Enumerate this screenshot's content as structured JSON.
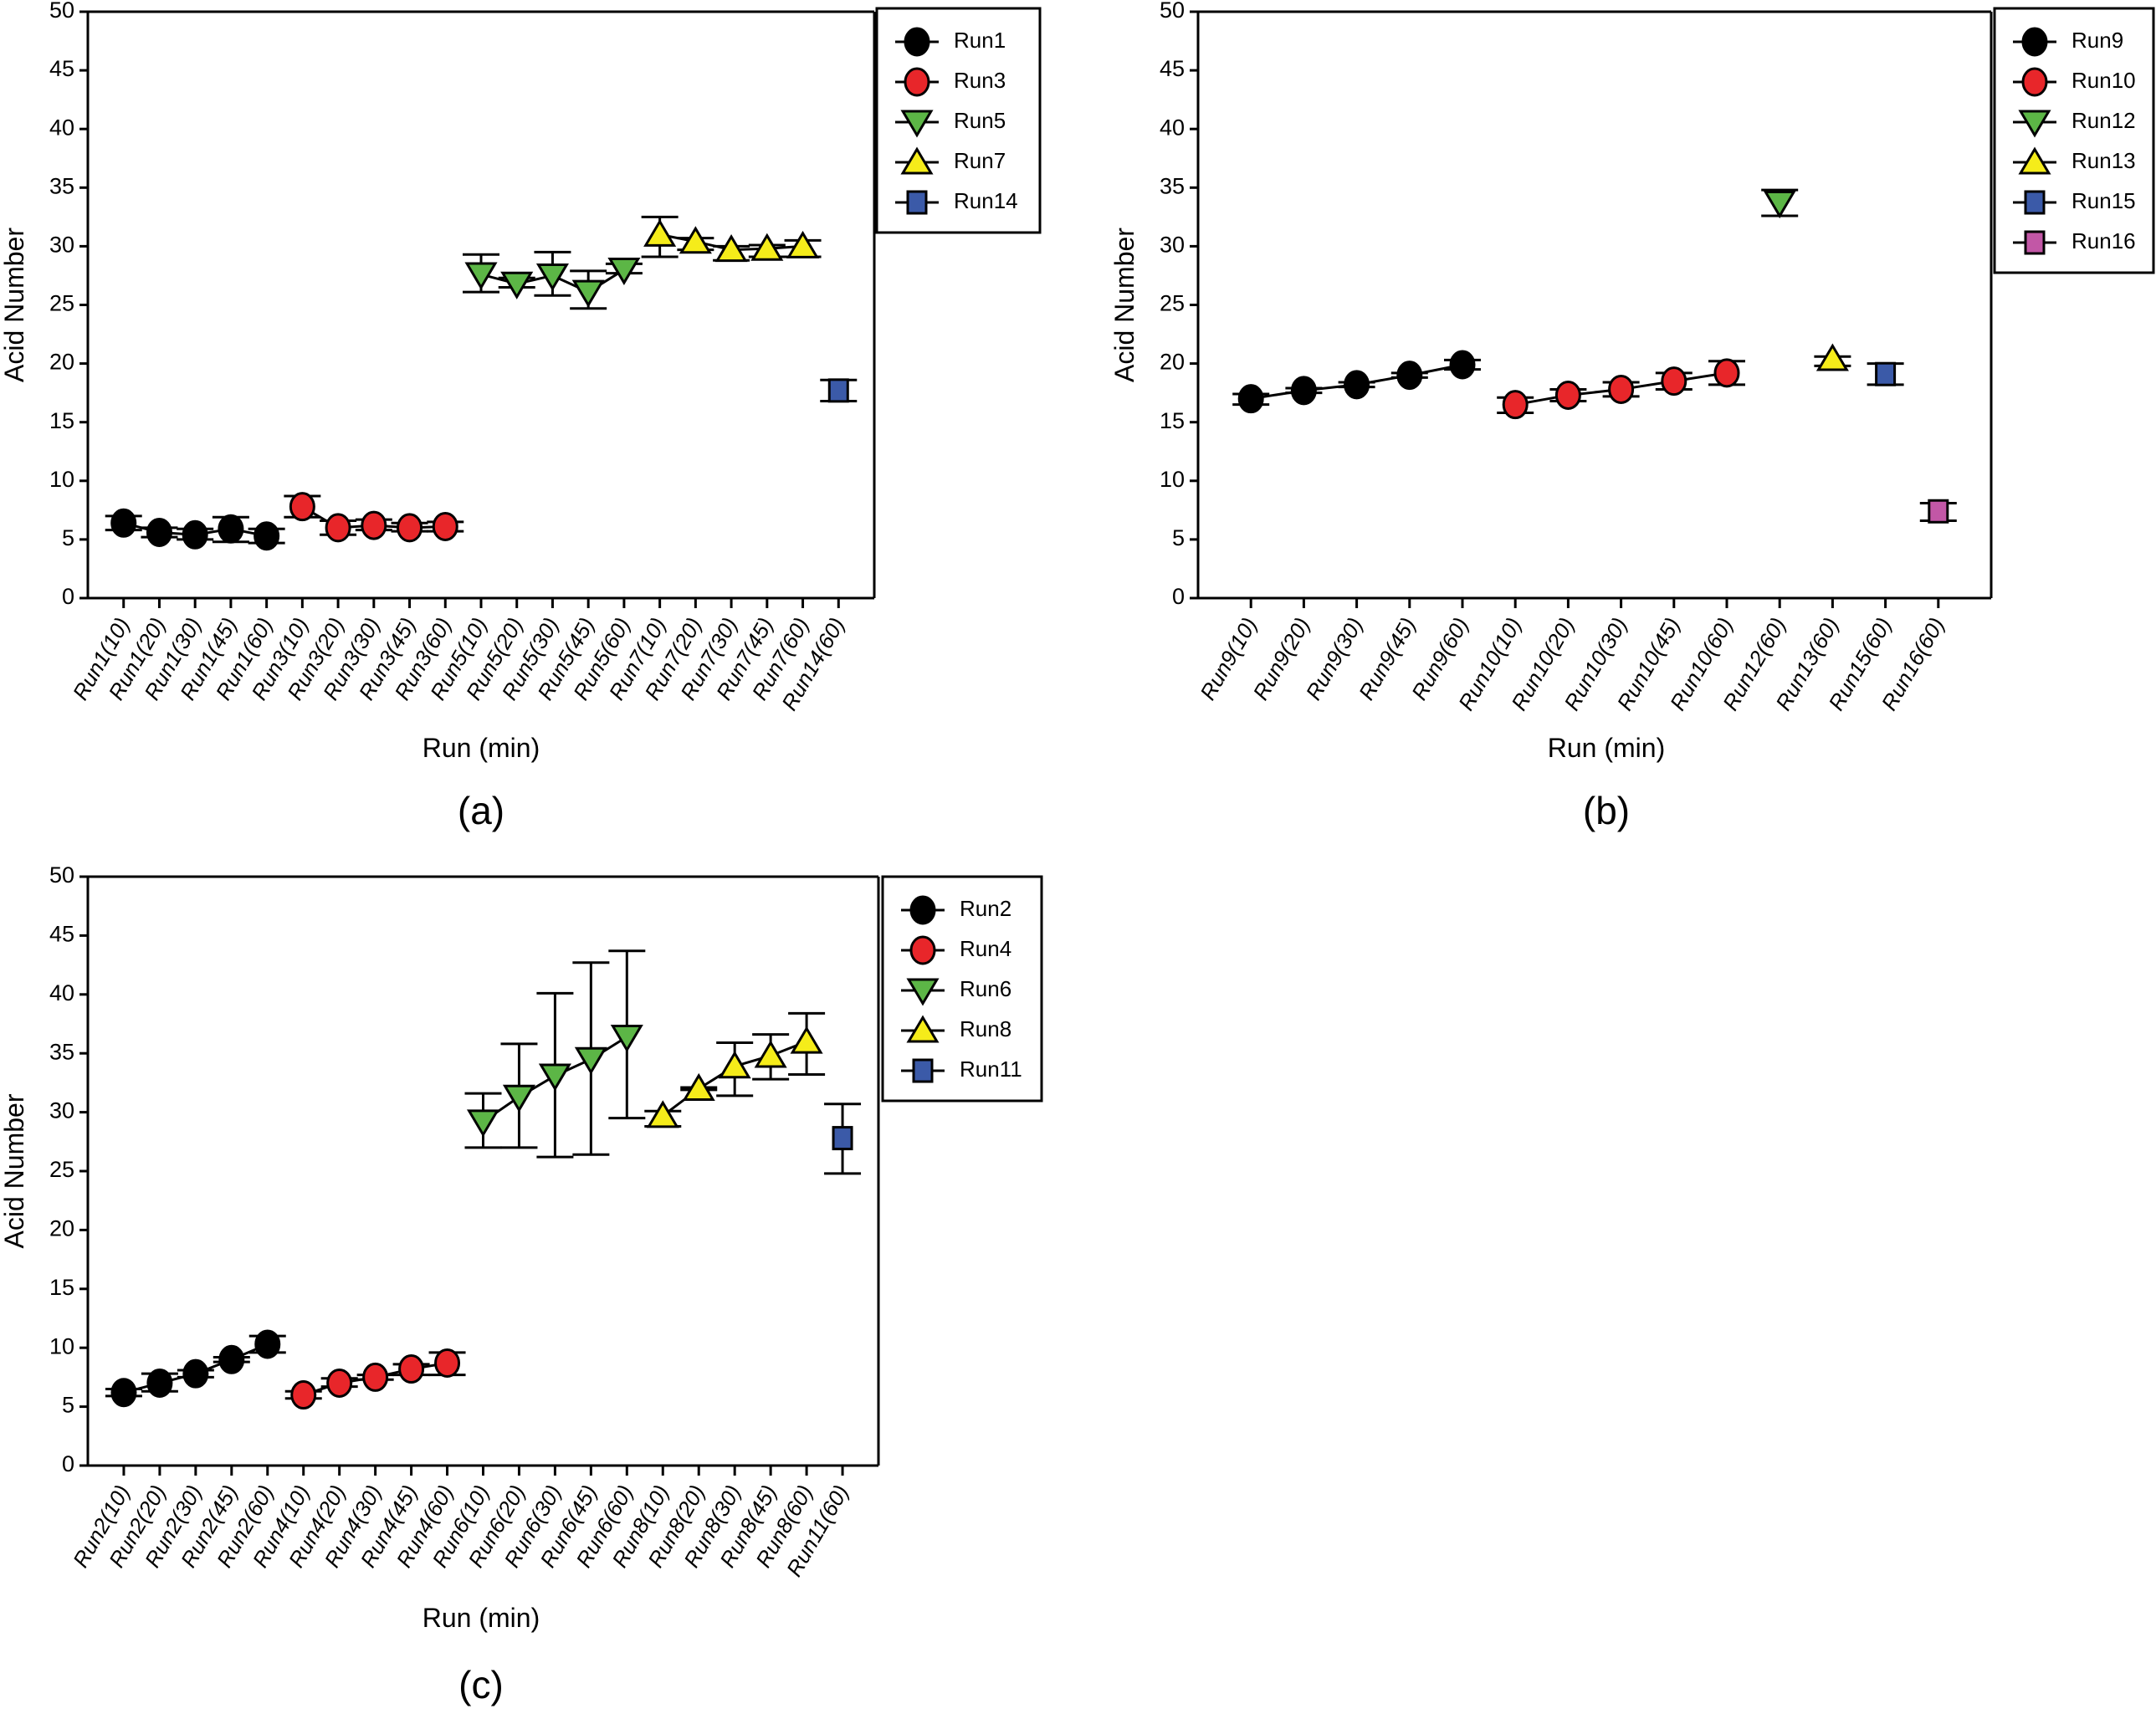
{
  "chart_data": [
    {
      "panel": "(a)",
      "type": "scatter",
      "title": "",
      "xlabel": "Run (min)",
      "ylabel": "Acid Number",
      "ylim": [
        0,
        50
      ],
      "yticks": [
        0,
        5,
        10,
        15,
        20,
        25,
        30,
        35,
        40,
        45,
        50
      ],
      "grid": false,
      "legend_position": "top-right-outside",
      "categories": [
        "Run1(10)",
        "Run1(20)",
        "Run1(30)",
        "Run1(45)",
        "Run1(60)",
        "Run3(10)",
        "Run3(20)",
        "Run3(30)",
        "Run3(45)",
        "Run3(60)",
        "Run5(10)",
        "Run5(20)",
        "Run5(30)",
        "Run5(45)",
        "Run5(60)",
        "Run7(10)",
        "Run7(20)",
        "Run7(30)",
        "Run7(45)",
        "Run7(60)",
        "Run14(60)"
      ],
      "series": [
        {
          "name": "Run1",
          "marker": "circle",
          "color": "#000000",
          "start": 0,
          "values": [
            6.4,
            5.6,
            5.4,
            5.9,
            5.3
          ],
          "err_low": [
            5.8,
            5.2,
            5.0,
            4.8,
            4.7
          ],
          "err_high": [
            7.0,
            6.0,
            5.9,
            6.9,
            5.9
          ]
        },
        {
          "name": "Run3",
          "marker": "circle",
          "color": "#e8262a",
          "start": 5,
          "values": [
            7.8,
            6.0,
            6.2,
            6.0,
            6.1
          ],
          "err_low": [
            6.9,
            5.4,
            5.8,
            5.7,
            5.7
          ],
          "err_high": [
            8.7,
            6.6,
            6.7,
            6.4,
            6.5
          ]
        },
        {
          "name": "Run5",
          "marker": "triangle-down",
          "color": "#5cb646",
          "start": 10,
          "values": [
            27.6,
            26.8,
            27.5,
            26.1,
            28.0
          ],
          "err_low": [
            26.1,
            26.5,
            25.8,
            24.7,
            27.7
          ],
          "err_high": [
            29.3,
            27.3,
            29.5,
            27.9,
            28.5
          ]
        },
        {
          "name": "Run7",
          "marker": "triangle-up",
          "color": "#f5ec1a",
          "start": 15,
          "values": [
            31.0,
            30.4,
            29.7,
            29.8,
            30.0
          ],
          "err_low": [
            29.1,
            29.7,
            28.8,
            29.1,
            29.1
          ],
          "err_high": [
            32.5,
            30.7,
            30.0,
            30.1,
            30.5
          ]
        },
        {
          "name": "Run14",
          "marker": "square",
          "color": "#3b5aa8",
          "start": 20,
          "values": [
            17.7
          ],
          "err_low": [
            16.8
          ],
          "err_high": [
            18.6
          ]
        }
      ]
    },
    {
      "panel": "(b)",
      "type": "scatter",
      "title": "",
      "xlabel": "Run (min)",
      "ylabel": "Acid Number",
      "ylim": [
        0,
        50
      ],
      "yticks": [
        0,
        5,
        10,
        15,
        20,
        25,
        30,
        35,
        40,
        45,
        50
      ],
      "grid": false,
      "legend_position": "top-right-outside",
      "categories": [
        "Run9(10)",
        "Run9(20)",
        "Run9(30)",
        "Run9(45)",
        "Run9(60)",
        "Run10(10)",
        "Run10(20)",
        "Run10(30)",
        "Run10(45)",
        "Run10(60)",
        "Run12(60)",
        "Run13(60)",
        "Run15(60)",
        "Run16(60)"
      ],
      "series": [
        {
          "name": "Run9",
          "marker": "circle",
          "color": "#000000",
          "start": 0,
          "values": [
            17.0,
            17.7,
            18.2,
            19.0,
            19.9
          ],
          "err_low": [
            16.5,
            17.5,
            18.0,
            18.8,
            19.5
          ],
          "err_high": [
            17.4,
            17.9,
            18.4,
            19.2,
            20.3
          ]
        },
        {
          "name": "Run10",
          "marker": "circle",
          "color": "#e8262a",
          "start": 5,
          "values": [
            16.5,
            17.3,
            17.8,
            18.5,
            19.2
          ],
          "err_low": [
            15.8,
            16.8,
            17.2,
            17.8,
            18.2
          ],
          "err_high": [
            17.1,
            17.8,
            18.4,
            19.2,
            20.2
          ]
        },
        {
          "name": "Run12",
          "marker": "triangle-down",
          "color": "#5cb646",
          "start": 10,
          "values": [
            33.7
          ],
          "err_low": [
            32.6
          ],
          "err_high": [
            34.8
          ]
        },
        {
          "name": "Run13",
          "marker": "triangle-up",
          "color": "#f5ec1a",
          "start": 11,
          "values": [
            20.4
          ],
          "err_low": [
            19.8
          ],
          "err_high": [
            20.6
          ]
        },
        {
          "name": "Run15",
          "marker": "square",
          "color": "#3b5aa8",
          "start": 12,
          "values": [
            19.1
          ],
          "err_low": [
            18.2
          ],
          "err_high": [
            20.0
          ]
        },
        {
          "name": "Run16",
          "marker": "square",
          "color": "#c257a6",
          "start": 13,
          "values": [
            7.4
          ],
          "err_low": [
            6.6
          ],
          "err_high": [
            8.1
          ]
        }
      ]
    },
    {
      "panel": "(c)",
      "type": "scatter",
      "title": "",
      "xlabel": "Run (min)",
      "ylabel": "Acid Number",
      "ylim": [
        0,
        50
      ],
      "yticks": [
        0,
        5,
        10,
        15,
        20,
        25,
        30,
        35,
        40,
        45,
        50
      ],
      "grid": false,
      "legend_position": "top-right-outside",
      "categories": [
        "Run2(10)",
        "Run2(20)",
        "Run2(30)",
        "Run2(45)",
        "Run2(60)",
        "Run4(10)",
        "Run4(20)",
        "Run4(30)",
        "Run4(45)",
        "Run4(60)",
        "Run6(10)",
        "Run6(20)",
        "Run6(30)",
        "Run6(45)",
        "Run6(60)",
        "Run8(10)",
        "Run8(20)",
        "Run8(30)",
        "Run8(45)",
        "Run8(60)",
        "Run11(60)"
      ],
      "series": [
        {
          "name": "Run2",
          "marker": "circle",
          "color": "#000000",
          "start": 0,
          "values": [
            6.2,
            7.0,
            7.8,
            9.0,
            10.3
          ],
          "err_low": [
            5.9,
            6.3,
            7.5,
            8.8,
            9.6
          ],
          "err_high": [
            6.5,
            7.8,
            8.1,
            9.2,
            11.0
          ]
        },
        {
          "name": "Run4",
          "marker": "circle",
          "color": "#e8262a",
          "start": 5,
          "values": [
            6.0,
            7.0,
            7.5,
            8.2,
            8.7
          ],
          "err_low": [
            5.7,
            6.7,
            7.3,
            7.7,
            7.7
          ],
          "err_high": [
            6.3,
            7.4,
            7.7,
            8.6,
            9.6
          ]
        },
        {
          "name": "Run6",
          "marker": "triangle-down",
          "color": "#5cb646",
          "start": 10,
          "values": [
            29.2,
            31.3,
            33.1,
            34.5,
            36.4
          ],
          "err_low": [
            27.0,
            27.0,
            26.2,
            26.4,
            29.5
          ],
          "err_high": [
            31.6,
            35.8,
            40.1,
            42.7,
            43.7
          ]
        },
        {
          "name": "Run8",
          "marker": "triangle-up",
          "color": "#f5ec1a",
          "start": 15,
          "values": [
            29.7,
            32.0,
            33.9,
            34.8,
            36.0
          ],
          "err_low": [
            28.8,
            31.9,
            31.4,
            32.8,
            33.2
          ],
          "err_high": [
            30.1,
            32.1,
            35.9,
            36.6,
            38.4
          ]
        },
        {
          "name": "Run11",
          "marker": "square",
          "color": "#3b5aa8",
          "start": 20,
          "values": [
            27.8
          ],
          "err_low": [
            24.8
          ],
          "err_high": [
            30.7
          ]
        }
      ]
    }
  ]
}
